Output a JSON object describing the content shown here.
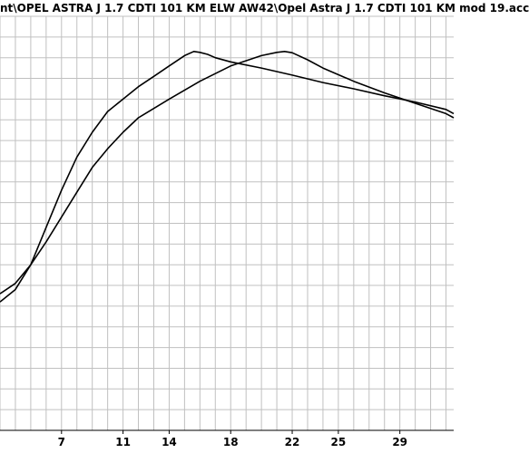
{
  "window": {
    "title": "nt\\OPEL ASTRA J 1.7 CDTI 101 KM ELW AW42\\Opel Astra J 1.7 CDTI 101 KM mod 19.acc"
  },
  "chart_data": {
    "type": "line",
    "title": "nt\\OPEL ASTRA J 1.7 CDTI 101 KM ELW AW42\\Opel Astra J 1.7 CDTI 101 KM mod 19.acc",
    "xlabel": "",
    "ylabel": "",
    "x_ticks": [
      "7",
      "11",
      "14",
      "18",
      "22",
      "25",
      "29"
    ],
    "xlim": [
      3.0,
      32.5
    ],
    "ylim": [
      0,
      100
    ],
    "grid": true,
    "series": [
      {
        "x": [
          3.0,
          4.0,
          5.0,
          6.0,
          7.0,
          8.0,
          9.0,
          10.0,
          11.0,
          12.0,
          13.0,
          14.0,
          15.0,
          15.6,
          16.0,
          16.5,
          17.0,
          18.0,
          20.0,
          22.0,
          24.0,
          26.0,
          28.0,
          30.0,
          32.0,
          32.5
        ],
        "y": [
          31,
          34,
          40,
          49,
          58,
          66,
          72,
          77,
          80,
          83,
          85.5,
          88,
          90.5,
          91.5,
          91.3,
          90.8,
          90,
          89,
          87.5,
          85.8,
          84,
          82.5,
          80.8,
          79.3,
          77.5,
          76.5
        ]
      },
      {
        "x": [
          3.0,
          4.0,
          5.0,
          6.0,
          7.0,
          8.0,
          9.0,
          10.0,
          11.0,
          12.0,
          14.0,
          16.0,
          18.0,
          20.0,
          21.0,
          21.5,
          22.0,
          23.0,
          24.0,
          26.0,
          28.0,
          30.0,
          32.0,
          32.5
        ],
        "y": [
          33,
          35.5,
          40,
          45.5,
          51.5,
          57.5,
          63.5,
          68,
          72,
          75.5,
          80,
          84.3,
          88,
          90.5,
          91.3,
          91.5,
          91.2,
          89.5,
          87.5,
          84.3,
          81.5,
          79,
          76.5,
          75.5
        ]
      }
    ]
  }
}
